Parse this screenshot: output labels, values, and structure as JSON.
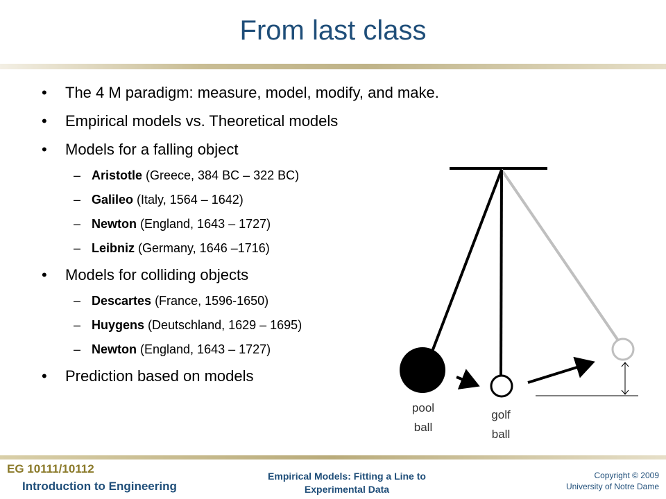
{
  "slide": {
    "title": "From last class",
    "bullets": [
      {
        "level": 1,
        "text": "The 4 M paradigm: measure, model, modify, and make."
      },
      {
        "level": 1,
        "text": "Empirical models vs. Theoretical models"
      },
      {
        "level": 1,
        "text": "Models for a falling object"
      },
      {
        "level": 2,
        "dash": "–",
        "name": "Aristotle",
        "detail": " (Greece, 384 BC – 322 BC)"
      },
      {
        "level": 2,
        "dash": "–",
        "name": "Galileo",
        "detail": " (Italy, 1564 – 1642)"
      },
      {
        "level": 2,
        "dash": "–",
        "name": "Newton",
        "detail": " (England, 1643 – 1727)"
      },
      {
        "level": 2,
        "dash": "–",
        "name": "Leibniz",
        "detail": " (Germany, 1646 –1716)"
      },
      {
        "level": 1,
        "text": "Models for colliding objects"
      },
      {
        "level": 2,
        "dash": "–",
        "name": "Descartes",
        "detail": " (France, 1596-1650)"
      },
      {
        "level": 2,
        "dash": "–",
        "name": "Huygens",
        "detail": " (Deutschland, 1629 – 1695)"
      },
      {
        "level": 2,
        "dash": "–",
        "name": "Newton",
        "detail": " (England, 1643 – 1727)"
      },
      {
        "level": 1,
        "text": "Prediction based on models"
      }
    ],
    "diagram": {
      "pool_label_line1": "pool",
      "pool_label_line2": "ball",
      "golf_label_line1": "golf",
      "golf_label_line2": "ball"
    }
  },
  "footer": {
    "course": "EG 10111/10112",
    "subtitle": "Introduction to Engineering",
    "topic_line1": "Empirical Models:  Fitting a Line to",
    "topic_line2": "Experimental Data",
    "copyright_line1": "Copyright © 2009",
    "copyright_line2": "University of Notre Dame"
  },
  "colors": {
    "title": "#1f4e79",
    "accent": "#8b7a2a"
  }
}
